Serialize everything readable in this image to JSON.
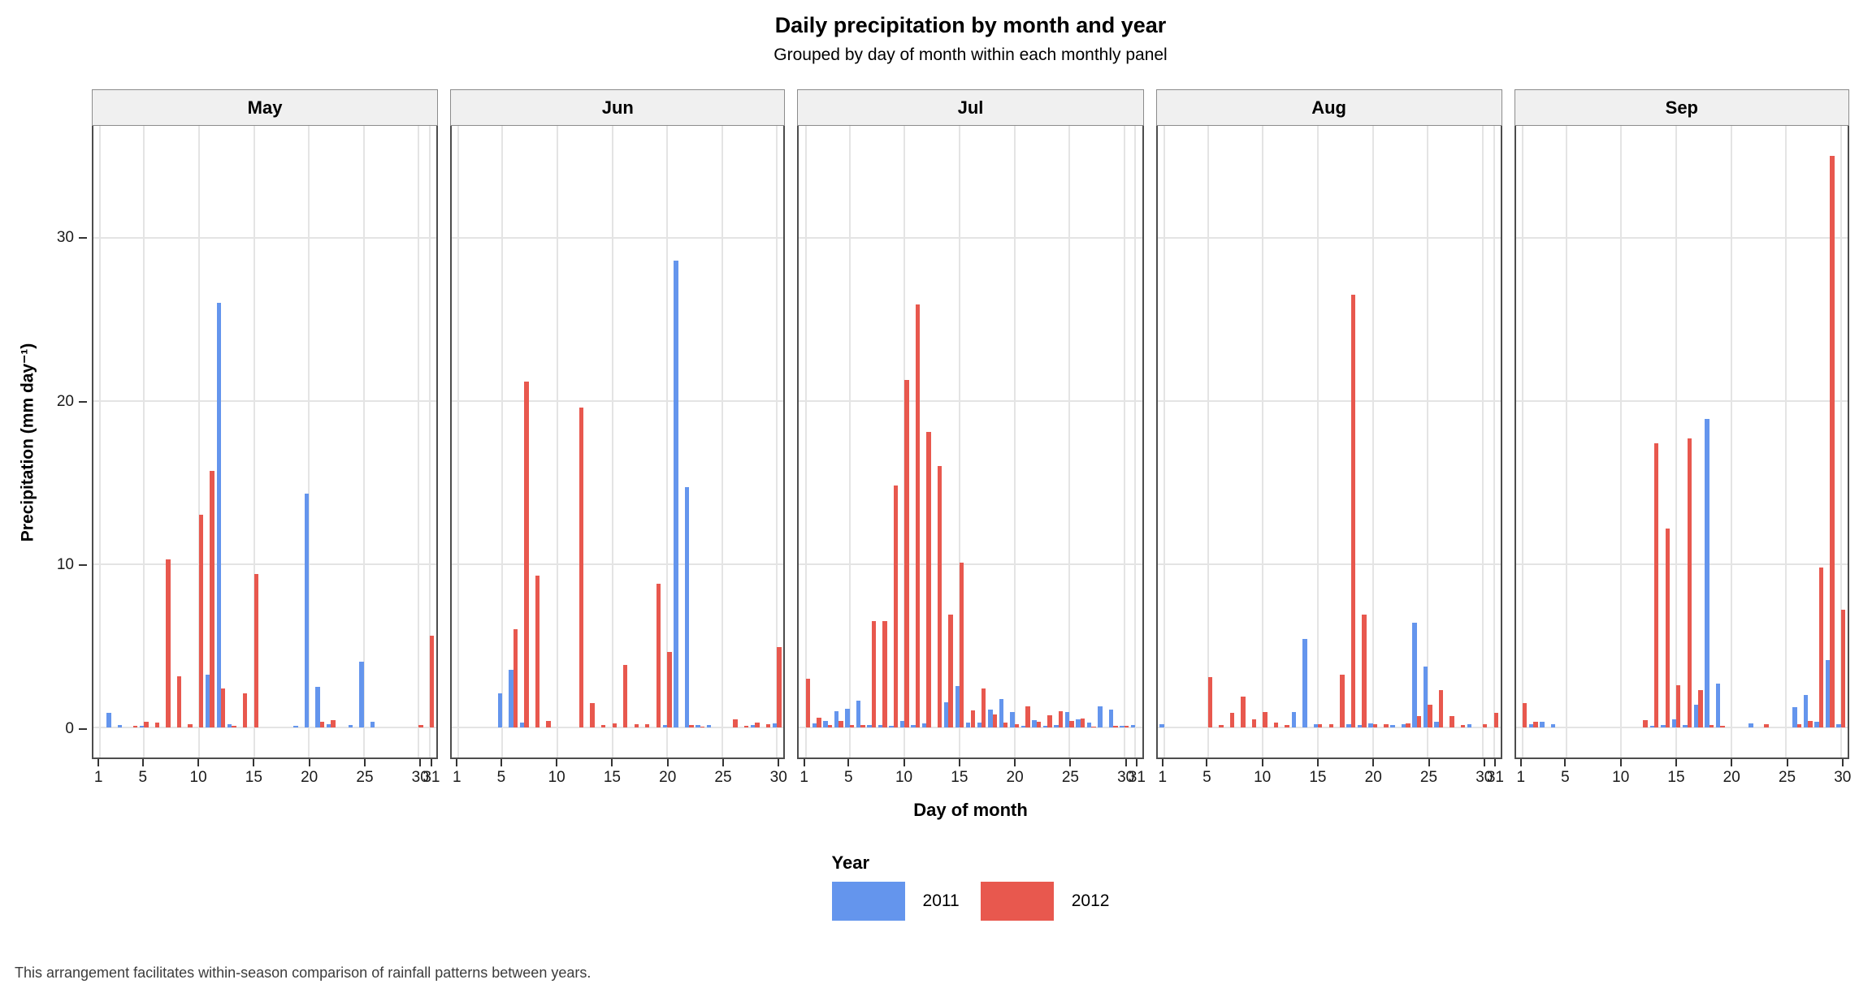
{
  "title": "Daily precipitation by month and year",
  "subtitle": "Grouped by day of month within each monthly panel",
  "caption": "This arrangement facilitates within-season comparison of rainfall patterns between years.",
  "y_axis": {
    "label": "Precipitation (mm day⁻¹)"
  },
  "x_axis": {
    "title": "Day of month"
  },
  "legend": {
    "title": "Year",
    "entries": [
      {
        "label": "2011",
        "color": "#6495ED"
      },
      {
        "label": "2012",
        "color": "#E8584E"
      }
    ]
  },
  "chart_data": {
    "type": "bar",
    "layout": "faceted-grouped-bars",
    "grid": "major-only",
    "legend_position": "bottom",
    "y_ticks": [
      0,
      10,
      20,
      30
    ],
    "ylim": [
      0,
      36.85
    ],
    "y_scale": {
      "min": -1.85,
      "max": 36.85
    },
    "series_colors": {
      "2011": "#6495ED",
      "2012": "#E8584E"
    },
    "panels": [
      {
        "month": "May",
        "days": 31,
        "x_ticks": [
          1,
          5,
          10,
          15,
          20,
          25,
          30,
          31
        ],
        "series": [
          {
            "name": "2011",
            "values": [
              0,
              0.9,
              0.15,
              0,
              0.1,
              0,
              0,
              0,
              0,
              0,
              3.2,
              26,
              0.17,
              0,
              0,
              0,
              0,
              0,
              0.07,
              14.3,
              2.5,
              0.2,
              0,
              0.13,
              4,
              0.35,
              0,
              0,
              0,
              0,
              0
            ]
          },
          {
            "name": "2012",
            "values": [
              0,
              0,
              0,
              0.08,
              0.33,
              0.3,
              10.3,
              3.15,
              0.2,
              13,
              15.7,
              2.4,
              0.08,
              2.1,
              9.4,
              0,
              0,
              0,
              0,
              0,
              0.33,
              0.46,
              0,
              0,
              0,
              0,
              0,
              0,
              0,
              0.13,
              5.6
            ]
          }
        ]
      },
      {
        "month": "Jun",
        "days": 30,
        "x_ticks": [
          1,
          5,
          10,
          15,
          20,
          25,
          30
        ],
        "series": [
          {
            "name": "2011",
            "values": [
              0,
              0,
              0,
              0,
              2.1,
              3.5,
              0.3,
              0,
              0,
              0,
              0,
              0,
              0,
              0,
              0,
              0,
              0,
              0,
              0,
              0.13,
              28.6,
              14.7,
              0.15,
              0.13,
              0,
              0,
              0,
              0.13,
              0,
              0.25
            ]
          },
          {
            "name": "2012",
            "values": [
              0,
              0,
              0,
              0,
              0,
              6,
              21.2,
              9.3,
              0.4,
              0,
              0,
              19.6,
              1.5,
              0.13,
              0.25,
              3.8,
              0.2,
              0.17,
              8.8,
              4.6,
              0,
              0.13,
              0.05,
              0,
              0,
              0.5,
              0.1,
              0.3,
              0.17,
              4.9
            ]
          }
        ]
      },
      {
        "month": "Jul",
        "days": 31,
        "x_ticks": [
          1,
          5,
          10,
          15,
          20,
          25,
          30,
          31
        ],
        "series": [
          {
            "name": "2011",
            "values": [
              0,
              0.26,
              0.4,
              1,
              1.15,
              1.65,
              0.13,
              0.13,
              0.08,
              0.4,
              0.13,
              0.25,
              0,
              1.55,
              2.55,
              0.27,
              0.3,
              1.1,
              1.75,
              0.95,
              0.1,
              0.45,
              0.1,
              0.13,
              0.95,
              0.5,
              0.3,
              1.3,
              1.1,
              0.08,
              0.13
            ]
          },
          {
            "name": "2012",
            "values": [
              3,
              0.6,
              0.13,
              0.4,
              0.13,
              0.13,
              6.5,
              6.5,
              14.8,
              21.3,
              25.9,
              18.1,
              16,
              6.9,
              10.1,
              1.05,
              2.4,
              0.8,
              0.3,
              0.17,
              1.3,
              0.33,
              0.75,
              1,
              0.4,
              0.55,
              0.05,
              0,
              0.08,
              0.08,
              0
            ]
          }
        ]
      },
      {
        "month": "Aug",
        "days": 31,
        "x_ticks": [
          1,
          5,
          10,
          15,
          20,
          25,
          30,
          31
        ],
        "series": [
          {
            "name": "2011",
            "values": [
              0.2,
              0,
              0,
              0,
              0,
              0,
              0,
              0,
              0,
              0,
              0,
              0,
              0.95,
              5.4,
              0.17,
              0,
              0,
              0.2,
              0.13,
              0.25,
              0,
              0.13,
              0.17,
              6.4,
              3.7,
              0.33,
              0,
              0,
              0.2,
              0,
              0
            ]
          },
          {
            "name": "2012",
            "values": [
              0,
              0,
              0,
              0,
              3.1,
              0.13,
              0.9,
              1.9,
              0.5,
              0.94,
              0.3,
              0.13,
              0,
              0,
              0.2,
              0.2,
              3.2,
              26.5,
              6.9,
              0.2,
              0.17,
              0,
              0.25,
              0.7,
              1.4,
              2.3,
              0.7,
              0.13,
              0,
              0.17,
              0.9
            ]
          }
        ]
      },
      {
        "month": "Sep",
        "days": 30,
        "x_ticks": [
          1,
          5,
          10,
          15,
          20,
          25,
          30
        ],
        "series": [
          {
            "name": "2011",
            "values": [
              0,
              0.2,
              0.35,
              0.17,
              0,
              0,
              0,
              0,
              0,
              0,
              0,
              0,
              0.08,
              0.13,
              0.5,
              0.13,
              1.4,
              18.9,
              2.7,
              0,
              0,
              0.25,
              0,
              0,
              0,
              1.25,
              2,
              0.35,
              4.1,
              0.17
            ]
          },
          {
            "name": "2012",
            "values": [
              1.5,
              0.35,
              0,
              0,
              0,
              0,
              0,
              0,
              0,
              0,
              0,
              0.45,
              17.4,
              12.2,
              2.6,
              17.7,
              2.3,
              0.13,
              0.08,
              0,
              0,
              0,
              0.2,
              0,
              0,
              0.17,
              0.4,
              9.8,
              35,
              7.2
            ]
          }
        ]
      }
    ]
  }
}
